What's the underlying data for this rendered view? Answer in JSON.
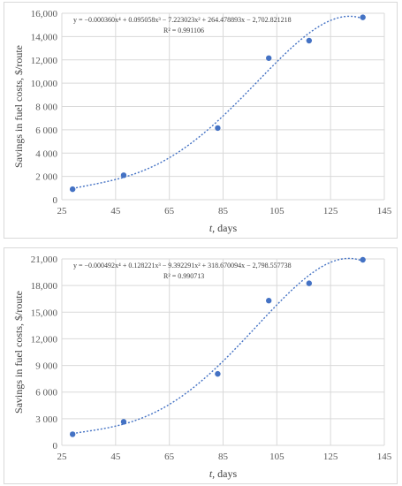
{
  "chart_data": [
    {
      "type": "scatter",
      "ylabel": "Savings in fuel costs, $/route",
      "xlabel_italic": "t",
      "xlabel_rest": ", days",
      "xlim": [
        25,
        145
      ],
      "ylim": [
        0,
        16000
      ],
      "xticks": [
        "25",
        "45",
        "65",
        "85",
        "105",
        "125",
        "145"
      ],
      "yticks": [
        "0",
        "2 000",
        "4 000",
        "6 000",
        "8 000",
        "10,000",
        "12,000",
        "14,000",
        "16,000"
      ],
      "x": [
        29,
        48,
        83,
        102,
        117,
        137
      ],
      "y": [
        900,
        2100,
        6150,
        12150,
        13650,
        15650
      ],
      "trendline": "poly4",
      "equation": "y = −0.000360x⁴ + 0.095058x³ − 7.223023x² + 264.478893x − 2,702.821218",
      "r2": "R² = 0.991106",
      "marker_color": "#4472c4",
      "grid": true
    },
    {
      "type": "scatter",
      "ylabel": "Savings in fuel costs, $/route",
      "xlabel_italic": "t",
      "xlabel_rest": ", days",
      "xlim": [
        25,
        145
      ],
      "ylim": [
        0,
        21000
      ],
      "xticks": [
        "25",
        "45",
        "65",
        "85",
        "105",
        "125",
        "145"
      ],
      "yticks": [
        "0",
        "3 000",
        "6 000",
        "9 000",
        "12,000",
        "15,000",
        "18,000",
        "21,000"
      ],
      "x": [
        29,
        48,
        83,
        102,
        117,
        137
      ],
      "y": [
        1250,
        2650,
        8050,
        16300,
        18250,
        20900
      ],
      "trendline": "poly4",
      "equation": "y = −0.000492x⁴ + 0.128221x³ − 9.392291x² + 318.670094x − 2,798.557738",
      "r2": "R² = 0.990713",
      "marker_color": "#4472c4",
      "grid": true
    }
  ]
}
